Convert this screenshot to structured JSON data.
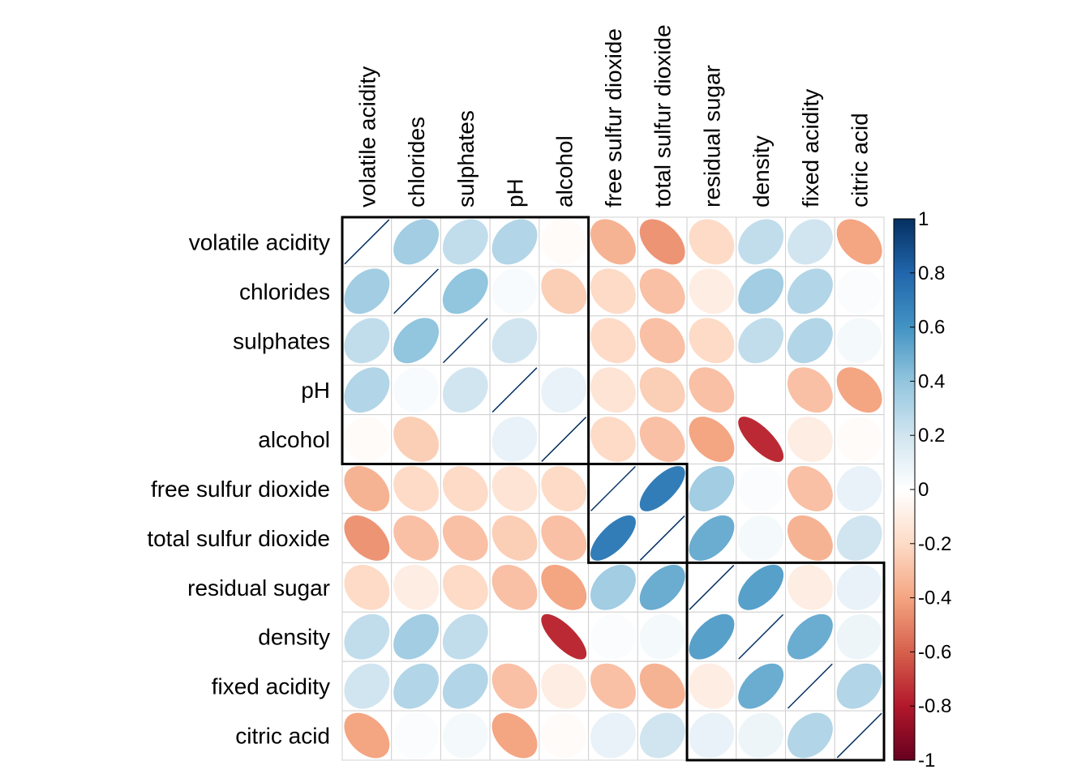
{
  "chart_data": {
    "type": "heatmap",
    "style": "corrplot-ellipse",
    "variables": [
      "volatile acidity",
      "chlorides",
      "sulphates",
      "pH",
      "alcohol",
      "free sulfur dioxide",
      "total sulfur dioxide",
      "residual sugar",
      "density",
      "fixed acidity",
      "citric acid"
    ],
    "matrix": [
      [
        1,
        0.35,
        0.25,
        0.3,
        -0.02,
        -0.35,
        -0.45,
        -0.2,
        0.25,
        0.2,
        -0.4
      ],
      [
        0.35,
        1,
        0.4,
        0.03,
        -0.25,
        -0.2,
        -0.3,
        -0.1,
        0.35,
        0.3,
        0.02
      ],
      [
        0.25,
        0.4,
        1,
        0.2,
        0.0,
        -0.2,
        -0.3,
        -0.2,
        0.25,
        0.3,
        0.05
      ],
      [
        0.3,
        0.03,
        0.2,
        1,
        0.1,
        -0.15,
        -0.25,
        -0.3,
        0.0,
        -0.3,
        -0.4
      ],
      [
        -0.02,
        -0.25,
        0.0,
        0.1,
        1,
        -0.2,
        -0.3,
        -0.4,
        -0.75,
        -0.1,
        -0.02
      ],
      [
        -0.35,
        -0.2,
        -0.2,
        -0.15,
        -0.2,
        1,
        0.7,
        0.35,
        0.02,
        -0.3,
        0.1
      ],
      [
        -0.45,
        -0.3,
        -0.3,
        -0.25,
        -0.3,
        0.7,
        1,
        0.5,
        0.05,
        -0.35,
        0.2
      ],
      [
        -0.2,
        -0.1,
        -0.2,
        -0.3,
        -0.4,
        0.35,
        0.5,
        1,
        0.55,
        -0.1,
        0.1
      ],
      [
        0.25,
        0.35,
        0.25,
        0.0,
        -0.75,
        0.02,
        0.05,
        0.55,
        1,
        0.5,
        0.08
      ],
      [
        0.2,
        0.3,
        0.3,
        -0.3,
        -0.1,
        -0.3,
        -0.35,
        -0.1,
        0.5,
        1,
        0.3
      ],
      [
        -0.4,
        0.02,
        0.05,
        -0.4,
        -0.02,
        0.1,
        0.2,
        0.1,
        0.08,
        0.3,
        1
      ]
    ],
    "clusters": [
      [
        0,
        4
      ],
      [
        5,
        6
      ],
      [
        7,
        10
      ]
    ],
    "colorbar": {
      "range": [
        -1,
        1
      ],
      "tick_labels": [
        "1",
        "0.8",
        "0.6",
        "0.4",
        "0.2",
        "0",
        "-0.2",
        "-0.4",
        "-0.6",
        "-0.8",
        "-1"
      ],
      "palette": [
        "#67001F",
        "#B2182B",
        "#D6604D",
        "#F4A582",
        "#FDDBC7",
        "#FFFFFF",
        "#D1E5F0",
        "#92C5DE",
        "#4393C3",
        "#2166AC",
        "#053061"
      ]
    },
    "grid": true,
    "legend_placement": "right"
  }
}
